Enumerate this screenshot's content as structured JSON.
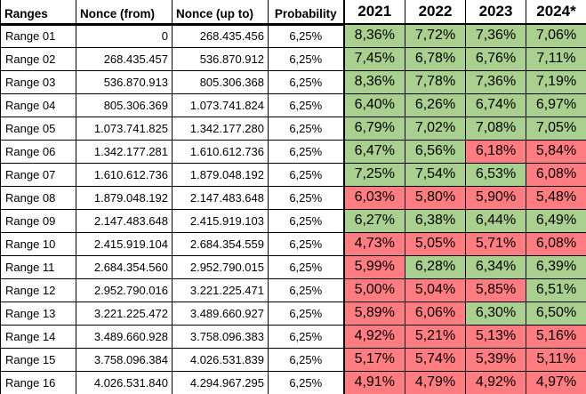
{
  "colors": {
    "green": "#A9D08E",
    "red": "#FF7C80"
  },
  "table": {
    "headers": [
      "Ranges",
      "Nonce (from)",
      "Nonce (up to)",
      "Probability",
      "2021",
      "2022",
      "2023",
      "2024*"
    ],
    "rows": [
      {
        "range": "Range 01",
        "from": "0",
        "to": "268.435.456",
        "probability": "6,25%",
        "years": [
          {
            "value": "8,36%",
            "color": "green"
          },
          {
            "value": "7,72%",
            "color": "green"
          },
          {
            "value": "7,36%",
            "color": "green"
          },
          {
            "value": "7,06%",
            "color": "green"
          }
        ]
      },
      {
        "range": "Range 02",
        "from": "268.435.457",
        "to": "536.870.912",
        "probability": "6,25%",
        "years": [
          {
            "value": "7,45%",
            "color": "green"
          },
          {
            "value": "6,78%",
            "color": "green"
          },
          {
            "value": "6,76%",
            "color": "green"
          },
          {
            "value": "7,11%",
            "color": "green"
          }
        ]
      },
      {
        "range": "Range 03",
        "from": "536.870.913",
        "to": "805.306.368",
        "probability": "6,25%",
        "years": [
          {
            "value": "8,36%",
            "color": "green"
          },
          {
            "value": "7,78%",
            "color": "green"
          },
          {
            "value": "7,36%",
            "color": "green"
          },
          {
            "value": "7,19%",
            "color": "green"
          }
        ]
      },
      {
        "range": "Range 04",
        "from": "805.306.369",
        "to": "1.073.741.824",
        "probability": "6,25%",
        "years": [
          {
            "value": "6,40%",
            "color": "green"
          },
          {
            "value": "6,26%",
            "color": "green"
          },
          {
            "value": "6,74%",
            "color": "green"
          },
          {
            "value": "6,97%",
            "color": "green"
          }
        ]
      },
      {
        "range": "Range 05",
        "from": "1.073.741.825",
        "to": "1.342.177.280",
        "probability": "6,25%",
        "years": [
          {
            "value": "6,79%",
            "color": "green"
          },
          {
            "value": "7,02%",
            "color": "green"
          },
          {
            "value": "7,08%",
            "color": "green"
          },
          {
            "value": "7,05%",
            "color": "green"
          }
        ]
      },
      {
        "range": "Range 06",
        "from": "1.342.177.281",
        "to": "1.610.612.736",
        "probability": "6,25%",
        "years": [
          {
            "value": "6,47%",
            "color": "green"
          },
          {
            "value": "6,56%",
            "color": "green"
          },
          {
            "value": "6,18%",
            "color": "red"
          },
          {
            "value": "5,84%",
            "color": "red"
          }
        ]
      },
      {
        "range": "Range 07",
        "from": "1.610.612.736",
        "to": "1.879.048.192",
        "probability": "6,25%",
        "years": [
          {
            "value": "7,25%",
            "color": "green"
          },
          {
            "value": "7,54%",
            "color": "green"
          },
          {
            "value": "6,53%",
            "color": "green"
          },
          {
            "value": "6,08%",
            "color": "red"
          }
        ]
      },
      {
        "range": "Range 08",
        "from": "1.879.048.192",
        "to": "2.147.483.648",
        "probability": "6,25%",
        "years": [
          {
            "value": "6,03%",
            "color": "red"
          },
          {
            "value": "5,80%",
            "color": "red"
          },
          {
            "value": "5,90%",
            "color": "red"
          },
          {
            "value": "5,48%",
            "color": "red"
          }
        ]
      },
      {
        "range": "Range 09",
        "from": "2.147.483.648",
        "to": "2.415.919.103",
        "probability": "6,25%",
        "years": [
          {
            "value": "6,27%",
            "color": "green"
          },
          {
            "value": "6,38%",
            "color": "green"
          },
          {
            "value": "6,44%",
            "color": "green"
          },
          {
            "value": "6,49%",
            "color": "green"
          }
        ]
      },
      {
        "range": "Range 10",
        "from": "2.415.919.104",
        "to": "2.684.354.559",
        "probability": "6,25%",
        "years": [
          {
            "value": "4,73%",
            "color": "red"
          },
          {
            "value": "5,05%",
            "color": "red"
          },
          {
            "value": "5,71%",
            "color": "red"
          },
          {
            "value": "6,08%",
            "color": "red"
          }
        ]
      },
      {
        "range": "Range 11",
        "from": "2.684.354.560",
        "to": "2.952.790.015",
        "probability": "6,25%",
        "years": [
          {
            "value": "5,99%",
            "color": "red"
          },
          {
            "value": "6,28%",
            "color": "green"
          },
          {
            "value": "6,34%",
            "color": "green"
          },
          {
            "value": "6,39%",
            "color": "green"
          }
        ]
      },
      {
        "range": "Range 12",
        "from": "2.952.790.016",
        "to": "3.221.225.471",
        "probability": "6,25%",
        "years": [
          {
            "value": "5,00%",
            "color": "red"
          },
          {
            "value": "5,04%",
            "color": "red"
          },
          {
            "value": "5,85%",
            "color": "red"
          },
          {
            "value": "6,51%",
            "color": "green"
          }
        ]
      },
      {
        "range": "Range 13",
        "from": "3.221.225.472",
        "to": "3.489.660.927",
        "probability": "6,25%",
        "years": [
          {
            "value": "5,89%",
            "color": "red"
          },
          {
            "value": "6,06%",
            "color": "red"
          },
          {
            "value": "6,30%",
            "color": "green"
          },
          {
            "value": "6,50%",
            "color": "green"
          }
        ]
      },
      {
        "range": "Range 14",
        "from": "3.489.660.928",
        "to": "3.758.096.383",
        "probability": "6,25%",
        "years": [
          {
            "value": "4,92%",
            "color": "red"
          },
          {
            "value": "5,21%",
            "color": "red"
          },
          {
            "value": "5,13%",
            "color": "red"
          },
          {
            "value": "5,16%",
            "color": "red"
          }
        ]
      },
      {
        "range": "Range 15",
        "from": "3.758.096.384",
        "to": "4.026.531.839",
        "probability": "6,25%",
        "years": [
          {
            "value": "5,17%",
            "color": "red"
          },
          {
            "value": "5,74%",
            "color": "red"
          },
          {
            "value": "5,39%",
            "color": "red"
          },
          {
            "value": "5,11%",
            "color": "red"
          }
        ]
      },
      {
        "range": "Range 16",
        "from": "4.026.531.840",
        "to": "4.294.967.295",
        "probability": "6,25%",
        "years": [
          {
            "value": "4,91%",
            "color": "red"
          },
          {
            "value": "4,79%",
            "color": "red"
          },
          {
            "value": "4,92%",
            "color": "red"
          },
          {
            "value": "4,97%",
            "color": "red"
          }
        ]
      }
    ]
  }
}
